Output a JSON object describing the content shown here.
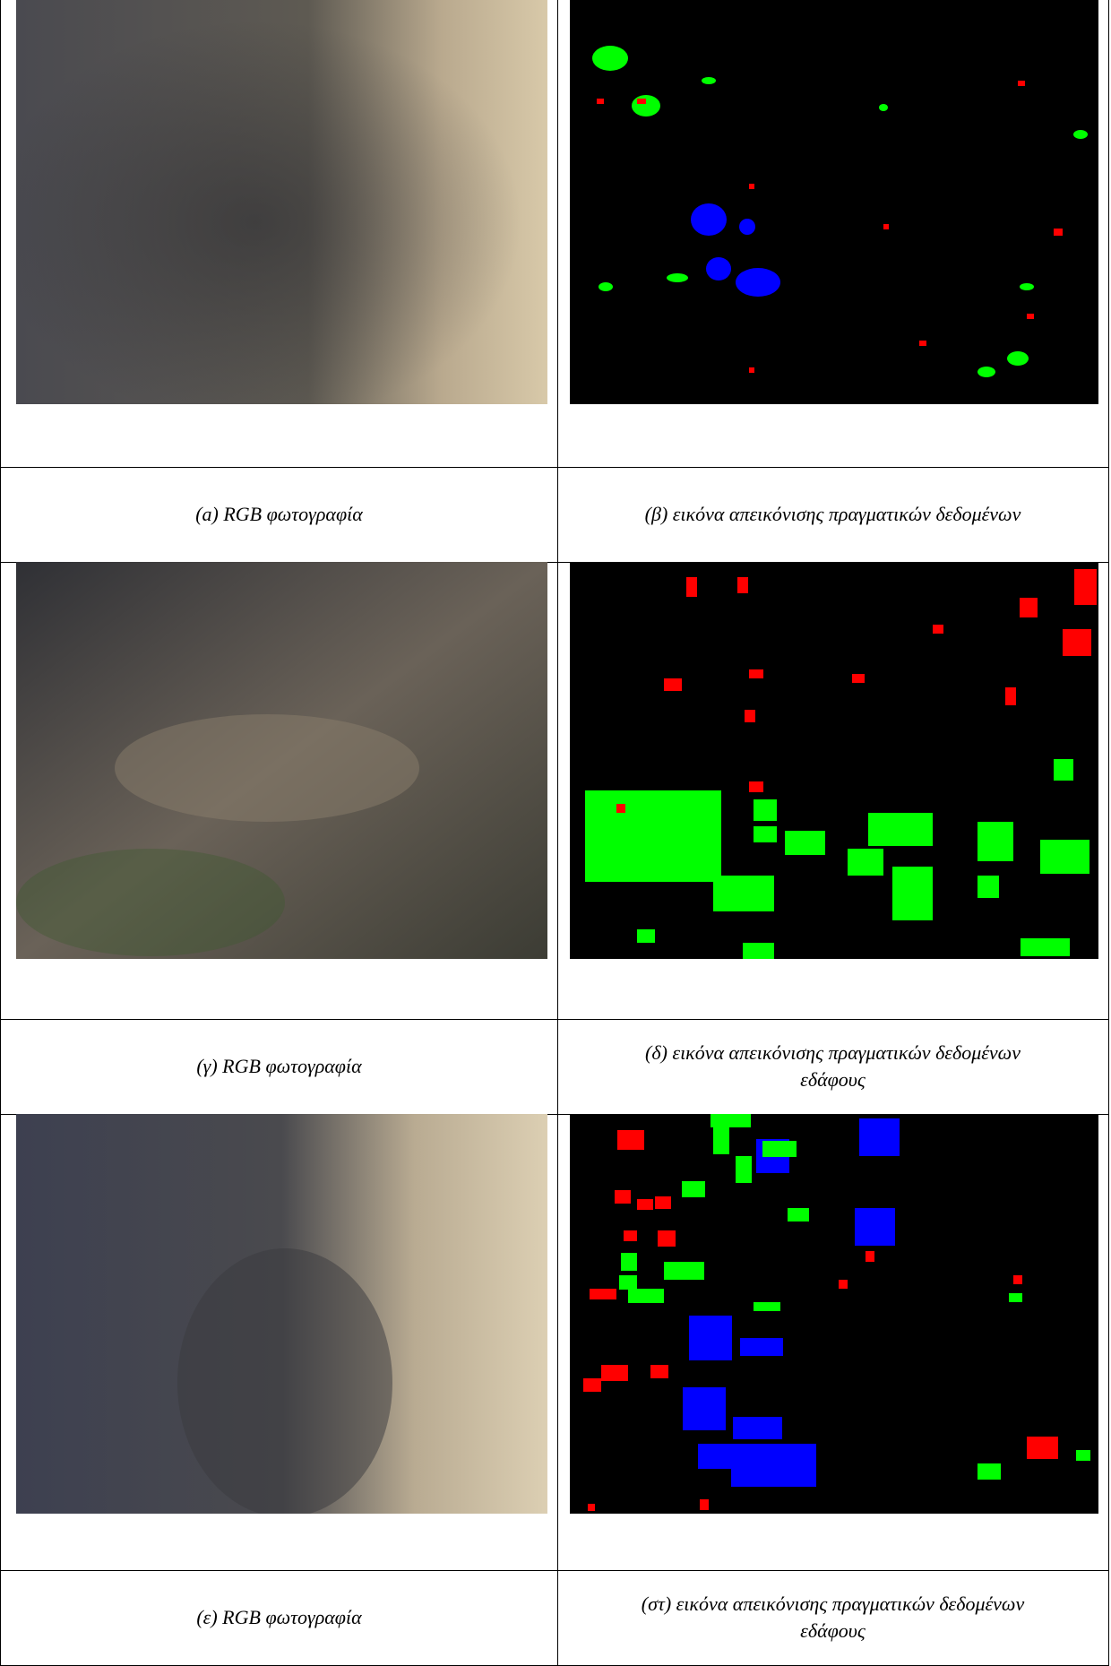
{
  "figures": [
    {
      "caption": "(a) RGB φωτογραφία"
    },
    {
      "caption": "(β) εικόνα απεικόνισης πραγματικών δεδομένων"
    },
    {
      "caption": "(γ) RGB φωτογραφία"
    },
    {
      "caption": "(δ) εικόνα απεικόνισης πραγματικών δεδομένων εδάφους"
    },
    {
      "caption": "(ε) RGB φωτογραφία"
    },
    {
      "caption": "(στ) εικόνα απεικόνισης πραγματικών δεδομένων εδάφους"
    }
  ]
}
